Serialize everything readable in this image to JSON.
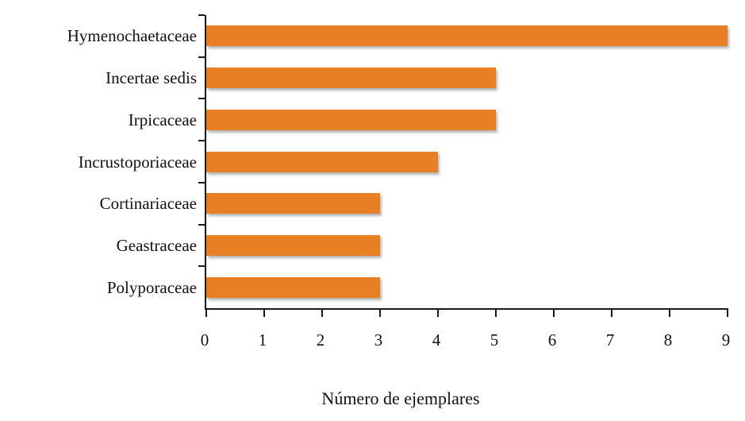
{
  "chart_data": {
    "type": "bar",
    "orientation": "horizontal",
    "title": "",
    "xlabel": "Número de ejemplares",
    "ylabel": "",
    "categories": [
      "Hymenochaetaceae",
      "Incertae sedis",
      "Irpicaceae",
      "Incrustoporiaceae",
      "Cortinariaceae",
      "Geastraceae",
      "Polyporaceae"
    ],
    "values": [
      9,
      5,
      5,
      4,
      3,
      3,
      3
    ],
    "xlim": [
      0,
      9
    ],
    "xticks": [
      0,
      1,
      2,
      3,
      4,
      5,
      6,
      7,
      8,
      9
    ],
    "grid": false,
    "legend": false,
    "bar_color": "#E87F24",
    "axis_color": "#1a1a1a",
    "text_color": "#111111"
  }
}
